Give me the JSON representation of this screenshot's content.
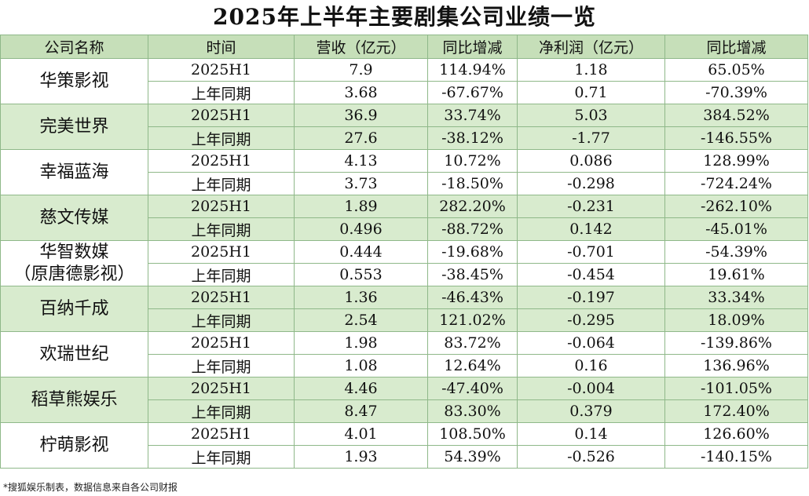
{
  "title": "2025年上半年主要剧集公司业绩一览",
  "headers": [
    "公司名称",
    "时间",
    "营收（亿元）",
    "同比增减",
    "净利润（亿元）",
    "同比增减"
  ],
  "companies": [
    {
      "name": [
        "华策影视"
      ],
      "rows": [
        [
          "2025H1",
          "7.9",
          "114.94%",
          "1.18",
          "65.05%"
        ],
        [
          "上年同期",
          "3.68",
          "-67.67%",
          "0.71",
          "-70.39%"
        ]
      ]
    },
    {
      "name": [
        "完美世界"
      ],
      "rows": [
        [
          "2025H1",
          "36.9",
          "33.74%",
          "5.03",
          "384.52%"
        ],
        [
          "上年同期",
          "27.6",
          "-38.12%",
          "-1.77",
          "-146.55%"
        ]
      ]
    },
    {
      "name": [
        "幸福蓝海"
      ],
      "rows": [
        [
          "2025H1",
          "4.13",
          "10.72%",
          "0.086",
          "128.99%"
        ],
        [
          "上年同期",
          "3.73",
          "-18.50%",
          "-0.298",
          "-724.24%"
        ]
      ]
    },
    {
      "name": [
        "慈文传媒"
      ],
      "rows": [
        [
          "2025H1",
          "1.89",
          "282.20%",
          "-0.231",
          "-262.10%"
        ],
        [
          "上年同期",
          "0.496",
          "-88.72%",
          "0.142",
          "-45.01%"
        ]
      ]
    },
    {
      "name": [
        "华智数媒",
        "（原唐德影视）"
      ],
      "rows": [
        [
          "2025H1",
          "0.444",
          "-19.68%",
          "-0.701",
          "-54.39%"
        ],
        [
          "上年同期",
          "0.553",
          "-38.45%",
          "-0.454",
          "19.61%"
        ]
      ]
    },
    {
      "name": [
        "百纳千成"
      ],
      "rows": [
        [
          "2025H1",
          "1.36",
          "-46.43%",
          "-0.197",
          "33.34%"
        ],
        [
          "上年同期",
          "2.54",
          "121.02%",
          "-0.295",
          "18.09%"
        ]
      ]
    },
    {
      "name": [
        "欢瑞世纪"
      ],
      "rows": [
        [
          "2025H1",
          "1.98",
          "83.72%",
          "-0.064",
          "-139.86%"
        ],
        [
          "上年同期",
          "1.08",
          "12.64%",
          "0.16",
          "136.96%"
        ]
      ]
    },
    {
      "name": [
        "稻草熊娱乐"
      ],
      "rows": [
        [
          "2025H1",
          "4.46",
          "-47.40%",
          "-0.004",
          "-101.05%"
        ],
        [
          "上年同期",
          "8.47",
          "83.30%",
          "0.379",
          "172.40%"
        ]
      ]
    },
    {
      "name": [
        "柠萌影视"
      ],
      "rows": [
        [
          "2025H1",
          "4.01",
          "108.50%",
          "0.14",
          "126.60%"
        ],
        [
          "上年同期",
          "1.93",
          "54.39%",
          "-0.526",
          "-140.15%"
        ]
      ]
    }
  ],
  "footnote": "*搜狐娱乐制表，数据信息来自各公司财报"
}
